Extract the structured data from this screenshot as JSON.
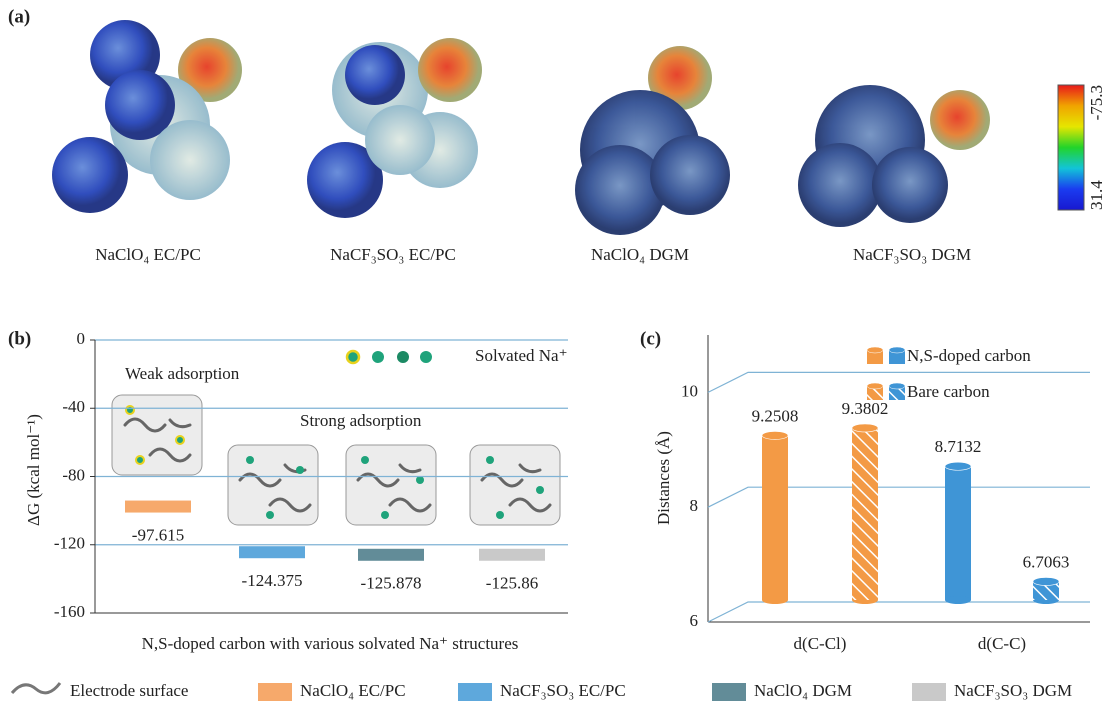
{
  "panel_labels": [
    "(a)",
    "(b)",
    "(c)"
  ],
  "panel_a": {
    "molecules": [
      "NaClO₄ EC/PC",
      "NaCF₃SO₃ EC/PC",
      "NaClO₄ DGM",
      "NaCF₃SO₃ DGM"
    ],
    "colorbar": {
      "ticks": [
        -75.3,
        31.4
      ],
      "colors": [
        "#e8191b",
        "#f0a400",
        "#e6e600",
        "#22d42a",
        "#12c4d8",
        "#1a3cf0",
        "#1818d0"
      ]
    }
  },
  "chart_data": [
    {
      "type": "level",
      "ylabel": "ΔG (kcal mol⁻¹)",
      "xlabel": "N,S-doped carbon with various solvated Na⁺ structures",
      "annotations": [
        "Weak adsorption",
        "Strong adsorption",
        "Solvated Na⁺"
      ],
      "series": [
        {
          "name": "NaClO₄ EC/PC",
          "color": "#f6a96b",
          "values": [
            -97.615
          ]
        },
        {
          "name": "NaCF₃SO₃ EC/PC",
          "color": "#5ea8dc",
          "values": [
            -124.375
          ]
        },
        {
          "name": "NaClO₄ DGM",
          "color": "#628c98",
          "values": [
            -125.878
          ]
        },
        {
          "name": "NaCF₃SO₃ DGM",
          "color": "#c9c9c9",
          "values": [
            -125.86
          ]
        }
      ],
      "ylim": [
        -160,
        0
      ],
      "yticks": [
        -160,
        -120,
        -80,
        -40,
        0
      ],
      "grid": true,
      "legend_extra": "Electrode surface"
    },
    {
      "type": "cylinder",
      "ylabel": "Distances (Å)",
      "categories": [
        "d(C-Cl)",
        "d(C-C)"
      ],
      "category_colors": [
        "#f39a45",
        "#3f95d6"
      ],
      "series": [
        {
          "name": "N,S-doped carbon",
          "hatch": false,
          "values": [
            9.2508,
            8.7132
          ]
        },
        {
          "name": "Bare carbon",
          "hatch": true,
          "values": [
            9.3802,
            6.7063
          ]
        }
      ],
      "ylim": [
        6,
        11
      ],
      "yticks": [
        6,
        8,
        10
      ],
      "grid": true
    }
  ]
}
